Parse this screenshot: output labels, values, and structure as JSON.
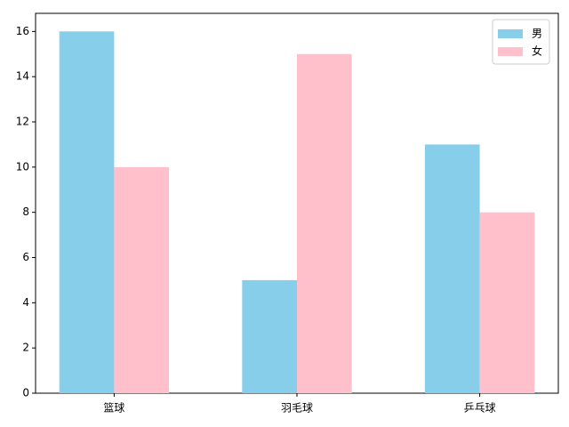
{
  "chart_data": {
    "type": "bar",
    "categories": [
      "篮球",
      "羽毛球",
      "乒乓球"
    ],
    "series": [
      {
        "name": "男",
        "color": "#87ceeb",
        "values": [
          16,
          5,
          11
        ]
      },
      {
        "name": "女",
        "color": "#ffc0cb",
        "values": [
          10,
          15,
          8
        ]
      }
    ],
    "ylim": [
      0,
      16.8
    ],
    "yticks": [
      0,
      2,
      4,
      6,
      8,
      10,
      12,
      14,
      16
    ],
    "legend": "upper right"
  }
}
